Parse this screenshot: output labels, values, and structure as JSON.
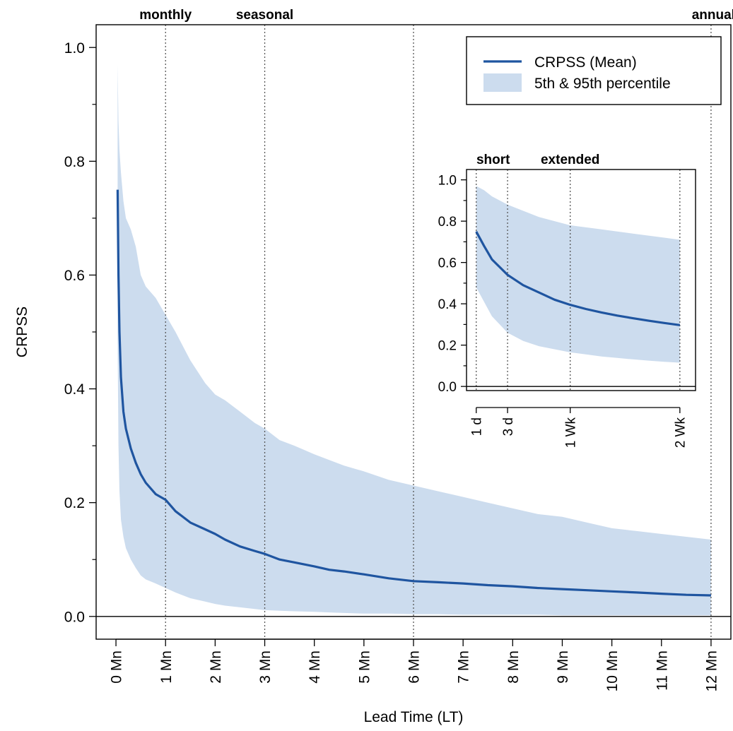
{
  "chart_data": [
    {
      "type": "line",
      "title": "",
      "xlabel": "Lead Time (LT)",
      "ylabel": "CRPSS",
      "xlim": [
        -0.4,
        12.4
      ],
      "ylim": [
        -0.04,
        1.04
      ],
      "x_ticks": [
        {
          "value": 0,
          "label": "0 Mn"
        },
        {
          "value": 1,
          "label": "1 Mn"
        },
        {
          "value": 2,
          "label": "2 Mn"
        },
        {
          "value": 3,
          "label": "3 Mn"
        },
        {
          "value": 4,
          "label": "4 Mn"
        },
        {
          "value": 5,
          "label": "5 Mn"
        },
        {
          "value": 6,
          "label": "6 Mn"
        },
        {
          "value": 7,
          "label": "7 Mn"
        },
        {
          "value": 8,
          "label": "8 Mn"
        },
        {
          "value": 9,
          "label": "9 Mn"
        },
        {
          "value": 10,
          "label": "10 Mn"
        },
        {
          "value": 11,
          "label": "11 Mn"
        },
        {
          "value": 12,
          "label": "12 Mn"
        }
      ],
      "y_ticks": [
        {
          "value": 0.0,
          "label": "0.0"
        },
        {
          "value": 0.2,
          "label": "0.2"
        },
        {
          "value": 0.4,
          "label": "0.4"
        },
        {
          "value": 0.6,
          "label": "0.6"
        },
        {
          "value": 0.8,
          "label": "0.8"
        },
        {
          "value": 1.0,
          "label": "1.0"
        }
      ],
      "y_minor_ticks": [
        0.1,
        0.3,
        0.5,
        0.7,
        0.9
      ],
      "reference_lines": [
        {
          "x": 1,
          "label": "monthly"
        },
        {
          "x": 3,
          "label": "seasonal"
        },
        {
          "x": 6,
          "label": ""
        },
        {
          "x": 12,
          "label": "annual"
        }
      ],
      "hline": 0,
      "legend": {
        "position": "top-right",
        "entries": [
          {
            "label": "CRPSS (Mean)",
            "kind": "line"
          },
          {
            "label": "5th & 95th percentile",
            "kind": "band"
          }
        ]
      },
      "colors": {
        "mean": "#1f55a0",
        "band": "#ccdcee",
        "refline": "#555555"
      },
      "series": [
        {
          "name": "CRPSS (Mean)",
          "x": [
            0.033,
            0.05,
            0.07,
            0.1,
            0.15,
            0.2,
            0.3,
            0.4,
            0.5,
            0.6,
            0.8,
            1.0,
            1.2,
            1.5,
            1.8,
            2.0,
            2.2,
            2.5,
            2.8,
            3.0,
            3.3,
            3.6,
            4.0,
            4.3,
            4.6,
            5.0,
            5.5,
            6.0,
            6.5,
            7.0,
            7.5,
            8.0,
            8.5,
            9.0,
            9.5,
            10.0,
            10.5,
            11.0,
            11.5,
            12.0
          ],
          "mean": [
            0.75,
            0.6,
            0.5,
            0.42,
            0.36,
            0.33,
            0.295,
            0.27,
            0.25,
            0.235,
            0.215,
            0.205,
            0.185,
            0.165,
            0.153,
            0.145,
            0.135,
            0.123,
            0.115,
            0.11,
            0.1,
            0.095,
            0.088,
            0.082,
            0.079,
            0.074,
            0.067,
            0.062,
            0.06,
            0.058,
            0.055,
            0.053,
            0.05,
            0.048,
            0.046,
            0.044,
            0.042,
            0.04,
            0.038,
            0.037
          ],
          "p5": [
            0.48,
            0.3,
            0.22,
            0.17,
            0.14,
            0.12,
            0.1,
            0.085,
            0.072,
            0.065,
            0.058,
            0.05,
            0.042,
            0.032,
            0.026,
            0.022,
            0.019,
            0.016,
            0.013,
            0.011,
            0.01,
            0.009,
            0.008,
            0.007,
            0.006,
            0.005,
            0.005,
            0.004,
            0.004,
            0.003,
            0.003,
            0.003,
            0.003,
            0.002,
            0.002,
            0.002,
            0.002,
            0.002,
            0.002,
            0.002
          ],
          "p95": [
            0.97,
            0.87,
            0.82,
            0.78,
            0.73,
            0.7,
            0.68,
            0.65,
            0.6,
            0.58,
            0.56,
            0.53,
            0.5,
            0.45,
            0.41,
            0.39,
            0.38,
            0.36,
            0.34,
            0.33,
            0.31,
            0.3,
            0.285,
            0.275,
            0.265,
            0.255,
            0.24,
            0.23,
            0.22,
            0.21,
            0.2,
            0.19,
            0.18,
            0.175,
            0.165,
            0.155,
            0.15,
            0.145,
            0.14,
            0.135
          ]
        }
      ]
    },
    {
      "type": "line",
      "title": "",
      "xlabel": "",
      "ylabel": "",
      "x_unit": "days",
      "xlim": [
        0.38,
        15.0
      ],
      "ylim": [
        -0.02,
        1.05
      ],
      "x_ticks": [
        {
          "value": 1,
          "label": "1 d"
        },
        {
          "value": 3,
          "label": "3 d"
        },
        {
          "value": 7,
          "label": "1 Wk"
        },
        {
          "value": 14,
          "label": "2 Wk"
        }
      ],
      "y_ticks": [
        {
          "value": 0.0,
          "label": "0.0"
        },
        {
          "value": 0.2,
          "label": "0.2"
        },
        {
          "value": 0.4,
          "label": "0.4"
        },
        {
          "value": 0.6,
          "label": "0.6"
        },
        {
          "value": 0.8,
          "label": "0.8"
        },
        {
          "value": 1.0,
          "label": "1.0"
        }
      ],
      "y_minor_ticks": [
        0.1,
        0.3,
        0.5,
        0.7,
        0.9
      ],
      "reference_lines": [
        {
          "x": 1,
          "label": "short"
        },
        {
          "x": 3,
          "label": ""
        },
        {
          "x": 7,
          "label": "extended"
        },
        {
          "x": 14,
          "label": ""
        }
      ],
      "hline": 0,
      "series": [
        {
          "name": "CRPSS (Mean)",
          "x": [
            1,
            1.5,
            2,
            3,
            4,
            5,
            6,
            7,
            8,
            9,
            10,
            11,
            12,
            13,
            14
          ],
          "mean": [
            0.75,
            0.68,
            0.615,
            0.54,
            0.49,
            0.455,
            0.42,
            0.395,
            0.375,
            0.358,
            0.343,
            0.33,
            0.318,
            0.307,
            0.297
          ],
          "p5": [
            0.48,
            0.41,
            0.34,
            0.26,
            0.22,
            0.195,
            0.18,
            0.165,
            0.155,
            0.145,
            0.138,
            0.131,
            0.125,
            0.119,
            0.115
          ],
          "p95": [
            0.97,
            0.95,
            0.92,
            0.88,
            0.85,
            0.82,
            0.8,
            0.78,
            0.77,
            0.76,
            0.75,
            0.74,
            0.73,
            0.72,
            0.71
          ]
        }
      ]
    }
  ]
}
